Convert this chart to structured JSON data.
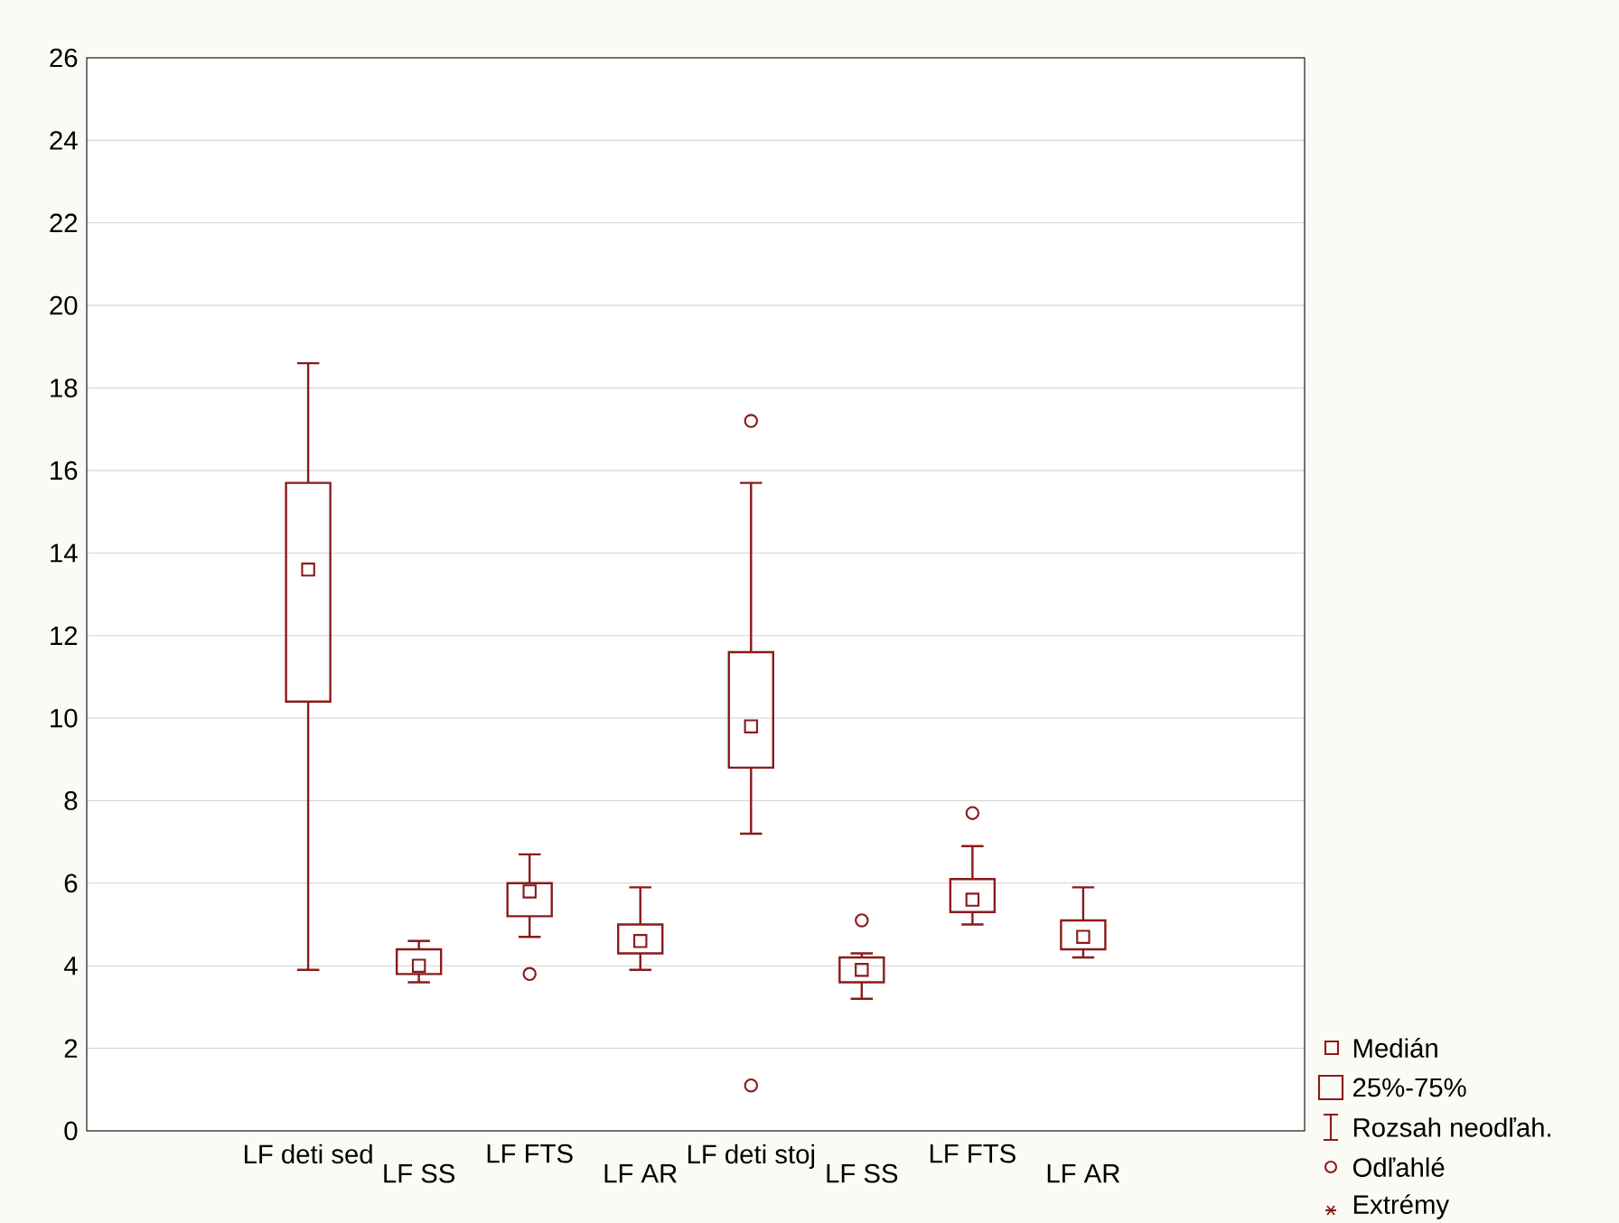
{
  "chart_data": {
    "type": "box",
    "categories": [
      "LF deti sed",
      "LF SS",
      "LF FTS",
      "LF AR",
      "LF deti stoj",
      "LF SS",
      "LF FTS",
      "LF AR"
    ],
    "boxes": [
      {
        "low": 3.9,
        "q1": 10.4,
        "median": 13.6,
        "q3": 15.7,
        "high": 18.6
      },
      {
        "low": 3.6,
        "q1": 3.8,
        "median": 4.0,
        "q3": 4.4,
        "high": 4.6
      },
      {
        "low": 4.7,
        "q1": 5.2,
        "median": 5.8,
        "q3": 6.0,
        "high": 6.7,
        "outliers": [
          3.8
        ]
      },
      {
        "low": 3.9,
        "q1": 4.3,
        "median": 4.6,
        "q3": 5.0,
        "high": 5.9
      },
      {
        "low": 7.2,
        "q1": 8.8,
        "median": 9.8,
        "q3": 11.6,
        "high": 15.7,
        "outliers": [
          17.2,
          1.1
        ]
      },
      {
        "low": 3.2,
        "q1": 3.6,
        "median": 3.9,
        "q3": 4.2,
        "high": 4.3,
        "outliers": [
          5.1
        ]
      },
      {
        "low": 5.0,
        "q1": 5.3,
        "median": 5.6,
        "q3": 6.1,
        "high": 6.9,
        "outliers": [
          7.7
        ]
      },
      {
        "low": 4.2,
        "q1": 4.4,
        "median": 4.7,
        "q3": 5.1,
        "high": 5.9
      }
    ],
    "color": "#8b1a1a",
    "ylim": [
      0,
      26
    ],
    "yticks": [
      0,
      2,
      4,
      6,
      8,
      10,
      12,
      14,
      16,
      18,
      20,
      22,
      24,
      26
    ],
    "grid": "y",
    "marker": "square",
    "annotations": [
      "Medián",
      "25%-75%",
      "Rozsah neodľah.",
      "Odľahlé",
      "Extrémy"
    ]
  }
}
